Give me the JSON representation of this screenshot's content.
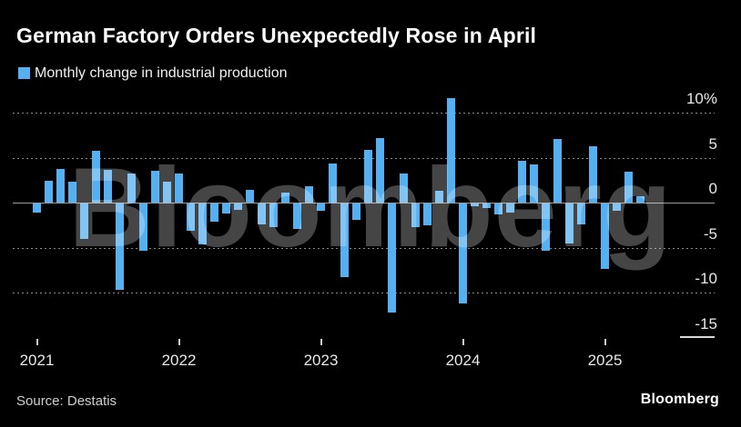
{
  "header": {
    "title": "German Factory Orders Unexpectedly Rose in April"
  },
  "legend": {
    "label": "Monthly change in industrial production"
  },
  "watermark": "Bloomberg",
  "footer": {
    "source": "Source: Destatis",
    "logo": "Bloomberg"
  },
  "colors": {
    "background": "#000000",
    "bar": "#54b0f1",
    "grid": "#8a8a8a",
    "zero_line": "#9b9b9b",
    "axis_text": "#e8e8e8",
    "watermark": "rgba(255,255,255,0.27)"
  },
  "chart_data": {
    "type": "bar",
    "title": "German Factory Orders Unexpectedly Rose in April",
    "legend_entries": [
      "Monthly change in industrial production"
    ],
    "ylabel": "",
    "xlabel": "",
    "unit": "%",
    "ylim": [
      -15,
      10
    ],
    "grid": "horizontal dotted, solid zero line",
    "legend_position": "top-left",
    "yticks": [
      {
        "value": 10,
        "label": "10%"
      },
      {
        "value": 5,
        "label": "5"
      },
      {
        "value": 0,
        "label": "0"
      },
      {
        "value": -5,
        "label": "-5"
      },
      {
        "value": -10,
        "label": "-10"
      },
      {
        "value": -15,
        "label": "-15"
      }
    ],
    "x_year_ticks": [
      "2021",
      "2022",
      "2023",
      "2024",
      "2025"
    ],
    "x": [
      "2021-01",
      "2021-02",
      "2021-03",
      "2021-04",
      "2021-05",
      "2021-06",
      "2021-07",
      "2021-08",
      "2021-09",
      "2021-10",
      "2021-11",
      "2021-12",
      "2022-01",
      "2022-02",
      "2022-03",
      "2022-04",
      "2022-05",
      "2022-06",
      "2022-07",
      "2022-08",
      "2022-09",
      "2022-10",
      "2022-11",
      "2022-12",
      "2023-01",
      "2023-02",
      "2023-03",
      "2023-04",
      "2023-05",
      "2023-06",
      "2023-07",
      "2023-08",
      "2023-09",
      "2023-10",
      "2023-11",
      "2023-12",
      "2024-01",
      "2024-02",
      "2024-03",
      "2024-04",
      "2024-05",
      "2024-06",
      "2024-07",
      "2024-08",
      "2024-09",
      "2024-10",
      "2024-11",
      "2024-12",
      "2025-01",
      "2025-02",
      "2025-03",
      "2025-04"
    ],
    "values": [
      -1.0,
      2.4,
      3.7,
      2.3,
      -3.9,
      5.8,
      3.6,
      -9.6,
      3.2,
      -5.3,
      3.5,
      2.3,
      3.2,
      -3.0,
      -4.5,
      -2.0,
      -1.1,
      -0.7,
      1.4,
      -2.3,
      -2.6,
      1.1,
      -2.8,
      1.8,
      -0.8,
      4.3,
      -8.2,
      -1.8,
      5.9,
      7.2,
      -12.1,
      3.2,
      -2.6,
      -2.4,
      1.3,
      11.6,
      -11.1,
      -0.3,
      -0.5,
      -1.2,
      -1.0,
      4.6,
      4.2,
      -5.3,
      7.1,
      -4.4,
      -2.3,
      6.3,
      -7.3,
      -0.8,
      3.4,
      0.7
    ]
  }
}
